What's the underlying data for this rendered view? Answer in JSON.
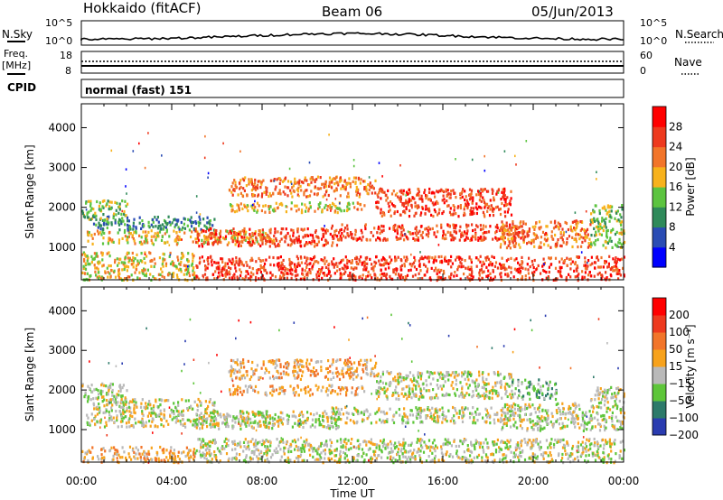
{
  "header": {
    "station": "Hokkaido (fitACF)",
    "beam": "Beam 06",
    "date": "05/Jun/2013"
  },
  "noise_panel": {
    "left_label": "N.Sky",
    "right_label": "N.Search",
    "tick_top": "10^5",
    "tick_bottom": "10^0"
  },
  "freq_panel": {
    "left_label_1": "Freq.",
    "left_label_2": "[MHz]",
    "left_tick_top": "18",
    "left_tick_bottom": "8",
    "right_label": "Nave",
    "right_tick_top": "60",
    "right_tick_bottom": "0"
  },
  "cpid_panel": {
    "label": "CPID",
    "value": "normal (fast) 151"
  },
  "chart_data": [
    {
      "type": "heatmap",
      "name": "power",
      "ylabel": "Slant Range [km]",
      "ylim": [
        180,
        4600
      ],
      "yticks": [
        1000,
        2000,
        3000,
        4000
      ],
      "xlim": [
        0,
        24
      ],
      "colorbar": {
        "label": "Power [dB]",
        "ticks": [
          "4",
          "8",
          "12",
          "16",
          "20",
          "24",
          "28"
        ],
        "colors": [
          "#0000ff",
          "#2a4cb4",
          "#2f8a5a",
          "#5cc440",
          "#f7b21c",
          "#f2752a",
          "#ee3a1e",
          "#ff0000"
        ]
      },
      "bands": [
        {
          "t": [
            0.2,
            8.5
          ],
          "r": [
            1100,
            1450
          ],
          "level": 4
        },
        {
          "t": [
            0.5,
            6.0
          ],
          "r": [
            1450,
            1800
          ],
          "level": 2
        },
        {
          "t": [
            0.0,
            2.0
          ],
          "r": [
            1700,
            2200
          ],
          "level": 3
        },
        {
          "t": [
            5.0,
            11.5
          ],
          "r": [
            1050,
            1500
          ],
          "level": 6
        },
        {
          "t": [
            11.0,
            19.5
          ],
          "r": [
            1200,
            1600
          ],
          "level": 6
        },
        {
          "t": [
            6.5,
            13.0
          ],
          "r": [
            2300,
            2800
          ],
          "level": 5
        },
        {
          "t": [
            13.0,
            19.0
          ],
          "r": [
            1800,
            2500
          ],
          "level": 6
        },
        {
          "t": [
            18.5,
            22.5
          ],
          "r": [
            1000,
            1700
          ],
          "level": 5
        },
        {
          "t": [
            5.0,
            24.0
          ],
          "r": [
            200,
            800
          ],
          "level": 6
        },
        {
          "t": [
            0.0,
            5.0
          ],
          "r": [
            200,
            900
          ],
          "level": 4
        },
        {
          "t": [
            6.5,
            12.5
          ],
          "r": [
            1900,
            2150
          ],
          "level": 4
        },
        {
          "t": [
            22.5,
            24.0
          ],
          "r": [
            1000,
            2100
          ],
          "level": 3
        }
      ]
    },
    {
      "type": "heatmap",
      "name": "velocity",
      "ylabel": "Slant Range [km]",
      "ylim": [
        180,
        4600
      ],
      "yticks": [
        1000,
        2000,
        3000,
        4000
      ],
      "xlim": [
        0,
        24
      ],
      "xlabel": "Time UT",
      "xticks": [
        "00:00",
        "04:00",
        "08:00",
        "12:00",
        "16:00",
        "20:00",
        "00:00"
      ],
      "colorbar": {
        "label": "Velocity [m s⁻¹]",
        "ticks": [
          "200",
          "100",
          "50",
          "15",
          "−15",
          "−50",
          "−100",
          "−200"
        ],
        "colors": [
          "#2a3cb0",
          "#2d7a6a",
          "#5ec63a",
          "#b9b9b9",
          "#f7a21c",
          "#f2752a",
          "#ee3a1e",
          "#ff0000"
        ]
      },
      "bands": [
        {
          "t": [
            0.2,
            8.5
          ],
          "r": [
            1100,
            1450
          ],
          "level": 3
        },
        {
          "t": [
            0.5,
            6.0
          ],
          "r": [
            1450,
            1800
          ],
          "level": 3
        },
        {
          "t": [
            0.0,
            2.0
          ],
          "r": [
            1700,
            2200
          ],
          "level": 3
        },
        {
          "t": [
            5.0,
            11.5
          ],
          "r": [
            1050,
            1500
          ],
          "level": 3
        },
        {
          "t": [
            11.0,
            19.5
          ],
          "r": [
            1200,
            1600
          ],
          "level": 3
        },
        {
          "t": [
            6.5,
            13.0
          ],
          "r": [
            2300,
            2800
          ],
          "level": 4
        },
        {
          "t": [
            13.0,
            19.0
          ],
          "r": [
            1800,
            2500
          ],
          "level": 3
        },
        {
          "t": [
            18.5,
            22.5
          ],
          "r": [
            1000,
            1700
          ],
          "level": 3
        },
        {
          "t": [
            5.0,
            24.0
          ],
          "r": [
            200,
            800
          ],
          "level": 3
        },
        {
          "t": [
            0.0,
            5.0
          ],
          "r": [
            200,
            600
          ],
          "level": 4
        },
        {
          "t": [
            6.5,
            12.5
          ],
          "r": [
            1900,
            2150
          ],
          "level": 4
        },
        {
          "t": [
            19.0,
            21.0
          ],
          "r": [
            1800,
            2300
          ],
          "level": 2
        },
        {
          "t": [
            22.5,
            24.0
          ],
          "r": [
            1000,
            2100
          ],
          "level": 3
        }
      ]
    }
  ]
}
